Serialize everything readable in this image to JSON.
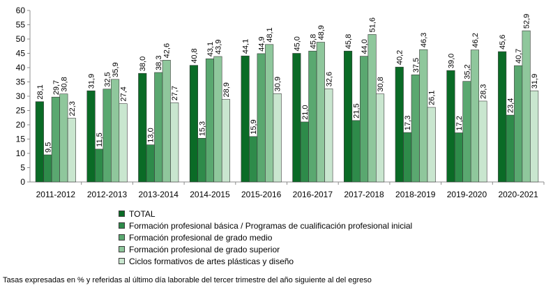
{
  "chart_data": {
    "type": "bar",
    "title": "",
    "xlabel": "",
    "ylabel": "",
    "ylim": [
      0,
      60
    ],
    "yticks": [
      0,
      5,
      10,
      15,
      20,
      25,
      30,
      35,
      40,
      45,
      50,
      55,
      60
    ],
    "grid": false,
    "legend_position": "bottom",
    "categories": [
      "2011-2012",
      "2012-2013",
      "2013-2014",
      "2014-2015",
      "2015-2016",
      "2016-2017",
      "2017-2018",
      "2018-2019",
      "2019-2020",
      "2020-2021"
    ],
    "series": [
      {
        "name": "TOTAL",
        "color": "#0a6b26",
        "values": [
          28.1,
          31.9,
          38.0,
          40.8,
          44.1,
          45.0,
          45.8,
          40.2,
          39.0,
          45.6
        ],
        "labels": [
          "28,1",
          "31,9",
          "38,0",
          "40,8",
          "44,1",
          "45,0",
          "45,8",
          "40,2",
          "39,0",
          "45,6"
        ]
      },
      {
        "name": "Formación profesional básica / Programas de cualificación profesional inicial",
        "color": "#2e8b4a",
        "values": [
          9.5,
          11.5,
          13.0,
          15.3,
          15.9,
          21.0,
          21.5,
          17.3,
          17.2,
          23.4
        ],
        "labels": [
          "9,5",
          "11,5",
          "13,0",
          "15,3",
          "15,9",
          "21,0",
          "21,5",
          "17,3",
          "17,2",
          "23,4"
        ]
      },
      {
        "name": "Formación profesional de grado medio",
        "color": "#5aa870",
        "values": [
          29.7,
          32.5,
          38.3,
          43.1,
          44.9,
          45.8,
          44.0,
          37.5,
          35.2,
          40.7
        ],
        "labels": [
          "29,7",
          "32,5",
          "38,3",
          "43,1",
          "44,9",
          "45,8",
          "44,0",
          "37,5",
          "35,2",
          "40,7"
        ]
      },
      {
        "name": "Formación profesional de grado superior",
        "color": "#8fc79c",
        "values": [
          30.8,
          35.9,
          42.6,
          43.9,
          48.1,
          48.9,
          51.6,
          46.3,
          46.2,
          52.9
        ],
        "labels": [
          "30,8",
          "35,9",
          "42,6",
          "43,9",
          "48,1",
          "48,9",
          "51,6",
          "46,3",
          "46,2",
          "52,9"
        ]
      },
      {
        "name": "Ciclos formativos de artes plásticas y diseño",
        "color": "#c9e6cf",
        "values": [
          22.3,
          27.4,
          27.7,
          28.9,
          30.9,
          32.6,
          30.8,
          26.1,
          28.3,
          31.9
        ],
        "labels": [
          "22,3",
          "27,4",
          "27,7",
          "28,9",
          "30,9",
          "32,6",
          "30,8",
          "26,1",
          "28,3",
          "31,9"
        ]
      }
    ]
  },
  "footnote": "Tasas expresadas en % y referidas al último día laborable del tercer trimestre del año siguiente al del egreso"
}
